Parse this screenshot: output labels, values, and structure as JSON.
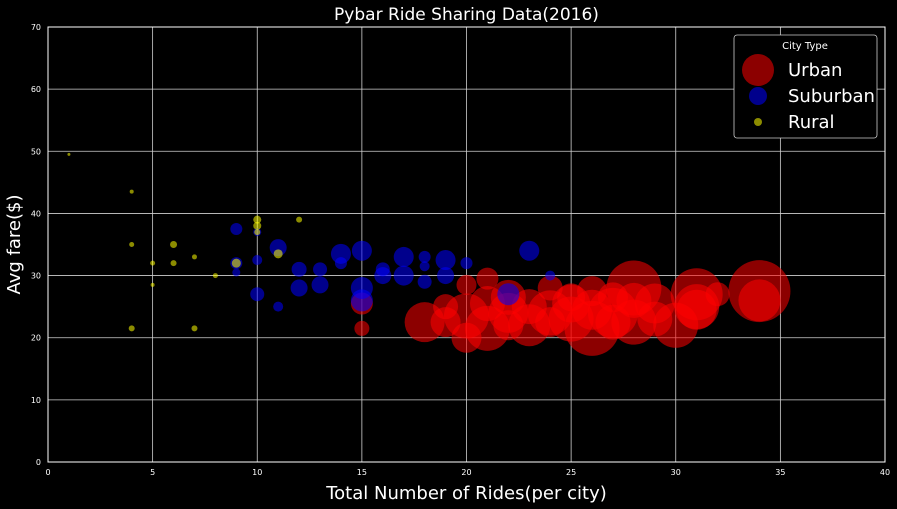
{
  "chart_data": {
    "type": "scatter",
    "title": "Pybar Ride Sharing Data(2016)",
    "xlabel": "Total Number of Rides(per city)",
    "ylabel": "Avg fare($)",
    "xlim": [
      0,
      40
    ],
    "ylim": [
      0,
      70
    ],
    "xticks": [
      0,
      5,
      10,
      15,
      20,
      25,
      30,
      35,
      40
    ],
    "yticks": [
      0,
      10,
      20,
      30,
      40,
      50,
      60,
      70
    ],
    "grid": true,
    "background": "#000000",
    "legend": {
      "title": "City Type",
      "position": "top-right"
    },
    "series": [
      {
        "name": "Urban",
        "color": "#ff0000",
        "points": [
          [
            34,
            27.5,
            62
          ],
          [
            34,
            26.0,
            42
          ],
          [
            31,
            27.0,
            52
          ],
          [
            31,
            25.0,
            45
          ],
          [
            31,
            24.5,
            40
          ],
          [
            32,
            27.0,
            24
          ],
          [
            30,
            22.0,
            45
          ],
          [
            29,
            25.5,
            40
          ],
          [
            28,
            28.0,
            55
          ],
          [
            28,
            22.5,
            45
          ],
          [
            28,
            26.0,
            35
          ],
          [
            27,
            24.0,
            50
          ],
          [
            27,
            26.5,
            30
          ],
          [
            26,
            21.5,
            55
          ],
          [
            26,
            24.5,
            40
          ],
          [
            25,
            25.5,
            38
          ],
          [
            25,
            23.0,
            45
          ],
          [
            24,
            28.0,
            25
          ],
          [
            24,
            24.0,
            45
          ],
          [
            23,
            22.0,
            42
          ],
          [
            23,
            25.0,
            35
          ],
          [
            22,
            26.5,
            35
          ],
          [
            22,
            24.0,
            40
          ],
          [
            21,
            21.5,
            45
          ],
          [
            21,
            25.5,
            35
          ],
          [
            21,
            29.5,
            22
          ],
          [
            20,
            20.0,
            30
          ],
          [
            20,
            28.5,
            20
          ],
          [
            20,
            23.5,
            45
          ],
          [
            19,
            22.5,
            30
          ],
          [
            19,
            25.0,
            25
          ],
          [
            18,
            22.5,
            40
          ],
          [
            15,
            25.5,
            22
          ],
          [
            15,
            21.5,
            15
          ],
          [
            26,
            27.5,
            30
          ],
          [
            24,
            22.5,
            30
          ],
          [
            22,
            22.0,
            30
          ],
          [
            27,
            22.5,
            35
          ],
          [
            29,
            23.0,
            35
          ],
          [
            25,
            26.5,
            28
          ]
        ]
      },
      {
        "name": "Suburban",
        "color": "#0000ff",
        "points": [
          [
            9,
            37.5,
            12
          ],
          [
            9,
            32.0,
            12
          ],
          [
            9,
            30.5,
            8
          ],
          [
            10,
            32.5,
            10
          ],
          [
            10,
            27.0,
            14
          ],
          [
            10,
            37.0,
            8
          ],
          [
            11,
            34.5,
            17
          ],
          [
            11,
            25.0,
            10
          ],
          [
            12,
            31.0,
            15
          ],
          [
            12,
            28.0,
            17
          ],
          [
            13,
            31.0,
            14
          ],
          [
            13,
            28.5,
            17
          ],
          [
            14,
            33.5,
            20
          ],
          [
            14,
            32.0,
            12
          ],
          [
            15,
            34.0,
            20
          ],
          [
            15,
            28.0,
            22
          ],
          [
            15,
            26.0,
            22
          ],
          [
            16,
            31.0,
            14
          ],
          [
            16,
            30.0,
            17
          ],
          [
            17,
            33.0,
            20
          ],
          [
            17,
            30.0,
            20
          ],
          [
            18,
            33.0,
            12
          ],
          [
            18,
            29.0,
            14
          ],
          [
            19,
            32.5,
            20
          ],
          [
            19,
            30.0,
            17
          ],
          [
            20,
            32.0,
            12
          ],
          [
            22,
            27.0,
            22
          ],
          [
            23,
            34.0,
            20
          ],
          [
            24,
            30.0,
            10
          ],
          [
            18,
            31.5,
            10
          ]
        ]
      },
      {
        "name": "Rural",
        "color": "#ffff00",
        "points": [
          [
            1,
            49.5,
            3
          ],
          [
            4,
            43.5,
            4
          ],
          [
            4,
            35.0,
            5
          ],
          [
            4,
            21.5,
            6
          ],
          [
            5,
            32.0,
            5
          ],
          [
            5,
            28.5,
            4
          ],
          [
            6,
            35.0,
            7
          ],
          [
            6,
            32.0,
            6
          ],
          [
            7,
            33.0,
            5
          ],
          [
            7,
            21.5,
            6
          ],
          [
            8,
            30.0,
            5
          ],
          [
            9,
            32.0,
            9
          ],
          [
            10,
            39.0,
            8
          ],
          [
            10,
            38.0,
            8
          ],
          [
            10,
            37.0,
            6
          ],
          [
            11,
            33.5,
            9
          ],
          [
            12,
            39.0,
            6
          ]
        ]
      }
    ]
  }
}
